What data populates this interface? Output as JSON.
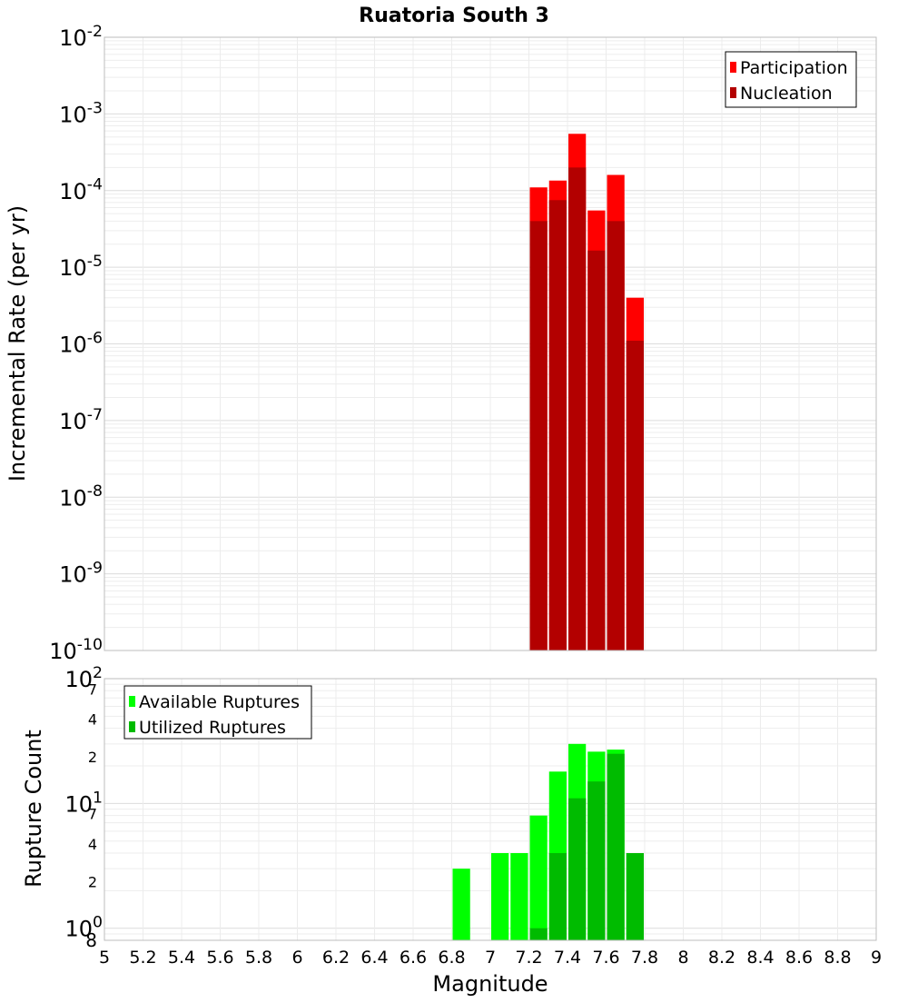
{
  "chart_data": [
    {
      "type": "bar",
      "title": "Ruatoria South 3",
      "xlabel": "",
      "ylabel": "Incremental Rate (per yr)",
      "yscale": "log",
      "ylim": [
        1e-10,
        0.01
      ],
      "xlim": [
        5,
        9
      ],
      "bin_width": 0.1,
      "grid": true,
      "legend_position": "top-right",
      "y_tick_labels": [
        {
          "base": "10",
          "exp": "-10"
        },
        {
          "base": "10",
          "exp": "-9"
        },
        {
          "base": "10",
          "exp": "-8"
        },
        {
          "base": "10",
          "exp": "-7"
        },
        {
          "base": "10",
          "exp": "-6"
        },
        {
          "base": "10",
          "exp": "-5"
        },
        {
          "base": "10",
          "exp": "-4"
        },
        {
          "base": "10",
          "exp": "-3"
        },
        {
          "base": "10",
          "exp": "-2"
        }
      ],
      "x": [
        7.25,
        7.35,
        7.45,
        7.55,
        7.65,
        7.75
      ],
      "series": [
        {
          "name": "Participation",
          "color": "#ff0000",
          "values": [
            0.00011,
            0.000135,
            0.00055,
            5.5e-05,
            0.00016,
            4e-06
          ]
        },
        {
          "name": "Nucleation",
          "color": "#b30000",
          "values": [
            4e-05,
            7.5e-05,
            0.0002,
            1.65e-05,
            4e-05,
            1.1e-06
          ]
        }
      ]
    },
    {
      "type": "bar",
      "title": "",
      "xlabel": "Magnitude",
      "ylabel": "Rupture Count",
      "yscale": "log",
      "ylim": [
        0.8,
        100
      ],
      "xlim": [
        5,
        9
      ],
      "bin_width": 0.1,
      "grid": true,
      "legend_position": "top-left",
      "y_tick_labels": [
        {
          "value": 1,
          "base": "10",
          "exp": "0"
        },
        {
          "value": 2,
          "base": "2",
          "exp": ""
        },
        {
          "value": 4,
          "base": "4",
          "exp": ""
        },
        {
          "value": 7,
          "base": "7",
          "exp": ""
        },
        {
          "value": 10,
          "base": "10",
          "exp": "1"
        },
        {
          "value": 20,
          "base": "2",
          "exp": ""
        },
        {
          "value": 40,
          "base": "4",
          "exp": ""
        },
        {
          "value": 70,
          "base": "7",
          "exp": ""
        },
        {
          "value": 100,
          "base": "10",
          "exp": "2"
        }
      ],
      "y_floor_label": "8",
      "x_tick_labels": [
        "5",
        "5.2",
        "5.4",
        "5.6",
        "5.8",
        "6",
        "6.2",
        "6.4",
        "6.6",
        "6.8",
        "7",
        "7.2",
        "7.4",
        "7.6",
        "7.8",
        "8",
        "8.2",
        "8.4",
        "8.6",
        "8.8",
        "9"
      ],
      "x": [
        6.85,
        7.05,
        7.15,
        7.25,
        7.35,
        7.45,
        7.55,
        7.65,
        7.75
      ],
      "series": [
        {
          "name": "Available Ruptures",
          "color": "#00ff00",
          "values": [
            3,
            4,
            4,
            8,
            18,
            30,
            26,
            27,
            4
          ]
        },
        {
          "name": "Utilized Ruptures",
          "color": "#00bb00",
          "values": [
            0,
            0,
            0,
            1,
            4,
            11,
            15,
            25,
            4
          ]
        }
      ]
    }
  ]
}
